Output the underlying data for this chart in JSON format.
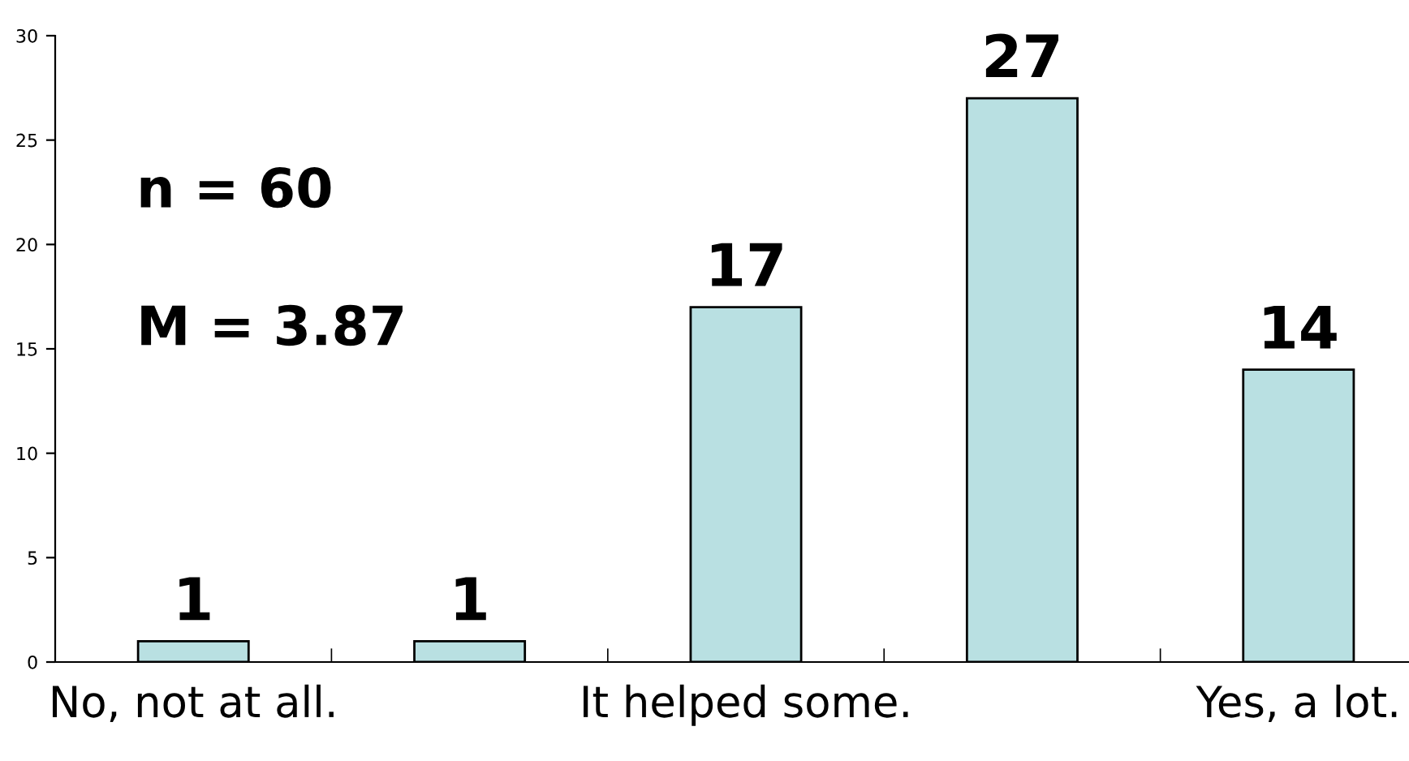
{
  "chart_data": {
    "type": "bar",
    "categories": [
      "No, not at all.",
      null,
      "It helped some.",
      null,
      "Yes, a lot."
    ],
    "values": [
      1,
      1,
      17,
      27,
      14
    ],
    "color": "#b9e0e2",
    "ylim": [
      0,
      30
    ],
    "yticks": [
      0,
      5,
      10,
      15,
      20,
      25,
      30
    ],
    "data_labels": true,
    "grid": false,
    "annotations": [
      "n = 60",
      "M = 3.87"
    ]
  }
}
